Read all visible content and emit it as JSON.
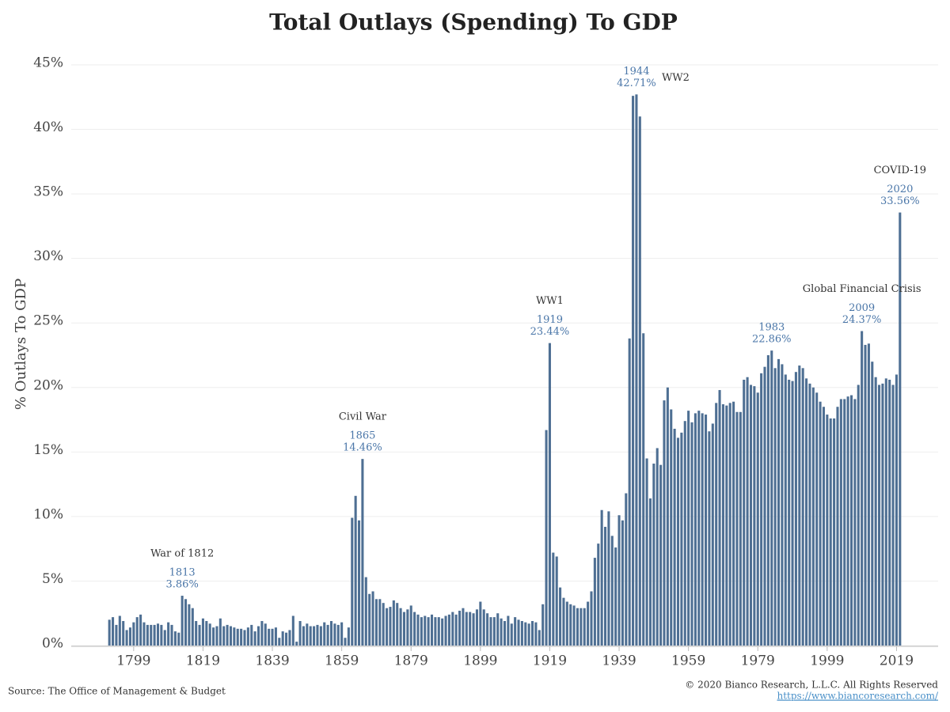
{
  "chart_data": {
    "type": "bar",
    "title": "Total Outlays (Spending) To GDP",
    "ylabel": "% Outlays To GDP",
    "source": "Source: The Office of Management & Budget",
    "copyright": "© 2020 Bianco Research, L.L.C. All Rights Reserved",
    "url": "https://www.biancoresearch.com/",
    "color": "#4e6f93",
    "grid": true,
    "xlim": [
      1781,
      2031
    ],
    "ylim": [
      0,
      45
    ],
    "xticks": [
      1799,
      1819,
      1839,
      1859,
      1879,
      1899,
      1919,
      1939,
      1959,
      1979,
      1999,
      2019
    ],
    "yticks": [
      {
        "value": 0,
        "label": "0%"
      },
      {
        "value": 5,
        "label": "5%"
      },
      {
        "value": 10,
        "label": "10%"
      },
      {
        "value": 15,
        "label": "15%"
      },
      {
        "value": 20,
        "label": "20%"
      },
      {
        "value": 25,
        "label": "25%"
      },
      {
        "value": 30,
        "label": "30%"
      },
      {
        "value": 35,
        "label": "35%"
      },
      {
        "value": 40,
        "label": "40%"
      },
      {
        "value": 45,
        "label": "45%"
      }
    ],
    "x": [
      1792,
      1793,
      1794,
      1795,
      1796,
      1797,
      1798,
      1799,
      1800,
      1801,
      1802,
      1803,
      1804,
      1805,
      1806,
      1807,
      1808,
      1809,
      1810,
      1811,
      1812,
      1813,
      1814,
      1815,
      1816,
      1817,
      1818,
      1819,
      1820,
      1821,
      1822,
      1823,
      1824,
      1825,
      1826,
      1827,
      1828,
      1829,
      1830,
      1831,
      1832,
      1833,
      1834,
      1835,
      1836,
      1837,
      1838,
      1839,
      1840,
      1841,
      1842,
      1843,
      1844,
      1845,
      1846,
      1847,
      1848,
      1849,
      1850,
      1851,
      1852,
      1853,
      1854,
      1855,
      1856,
      1857,
      1858,
      1859,
      1860,
      1861,
      1862,
      1863,
      1864,
      1865,
      1866,
      1867,
      1868,
      1869,
      1870,
      1871,
      1872,
      1873,
      1874,
      1875,
      1876,
      1877,
      1878,
      1879,
      1880,
      1881,
      1882,
      1883,
      1884,
      1885,
      1886,
      1887,
      1888,
      1889,
      1890,
      1891,
      1892,
      1893,
      1894,
      1895,
      1896,
      1897,
      1898,
      1899,
      1900,
      1901,
      1902,
      1903,
      1904,
      1905,
      1906,
      1907,
      1908,
      1909,
      1910,
      1911,
      1912,
      1913,
      1914,
      1915,
      1916,
      1917,
      1918,
      1919,
      1920,
      1921,
      1922,
      1923,
      1924,
      1925,
      1926,
      1927,
      1928,
      1929,
      1930,
      1931,
      1932,
      1933,
      1934,
      1935,
      1936,
      1937,
      1938,
      1939,
      1940,
      1941,
      1942,
      1943,
      1944,
      1945,
      1946,
      1947,
      1948,
      1949,
      1950,
      1951,
      1952,
      1953,
      1954,
      1955,
      1956,
      1957,
      1958,
      1959,
      1960,
      1961,
      1962,
      1963,
      1964,
      1965,
      1966,
      1967,
      1968,
      1969,
      1970,
      1971,
      1972,
      1973,
      1974,
      1975,
      1976,
      1977,
      1978,
      1979,
      1980,
      1981,
      1982,
      1983,
      1984,
      1985,
      1986,
      1987,
      1988,
      1989,
      1990,
      1991,
      1992,
      1993,
      1994,
      1995,
      1996,
      1997,
      1998,
      1999,
      2000,
      2001,
      2002,
      2003,
      2004,
      2005,
      2006,
      2007,
      2008,
      2009,
      2010,
      2011,
      2012,
      2013,
      2014,
      2015,
      2016,
      2017,
      2018,
      2019,
      2020
    ],
    "values": [
      2.0,
      2.2,
      1.6,
      2.3,
      1.9,
      1.2,
      1.4,
      1.8,
      2.2,
      2.4,
      1.8,
      1.6,
      1.6,
      1.6,
      1.7,
      1.6,
      1.2,
      1.8,
      1.6,
      1.1,
      1.0,
      3.86,
      3.6,
      3.2,
      2.9,
      1.9,
      1.6,
      2.1,
      1.9,
      1.7,
      1.4,
      1.5,
      2.1,
      1.5,
      1.6,
      1.5,
      1.4,
      1.3,
      1.3,
      1.2,
      1.4,
      1.6,
      1.1,
      1.5,
      1.9,
      1.7,
      1.3,
      1.3,
      1.4,
      0.6,
      1.1,
      1.0,
      1.2,
      2.3,
      0.3,
      1.9,
      1.5,
      1.7,
      1.5,
      1.5,
      1.6,
      1.5,
      1.8,
      1.6,
      1.9,
      1.7,
      1.6,
      1.8,
      0.6,
      1.4,
      9.9,
      11.6,
      9.7,
      14.46,
      5.3,
      4.0,
      4.2,
      3.6,
      3.6,
      3.3,
      2.9,
      3.0,
      3.5,
      3.3,
      2.9,
      2.6,
      2.8,
      3.1,
      2.6,
      2.4,
      2.2,
      2.3,
      2.2,
      2.4,
      2.2,
      2.2,
      2.1,
      2.3,
      2.4,
      2.6,
      2.4,
      2.7,
      2.9,
      2.6,
      2.6,
      2.5,
      2.8,
      3.4,
      2.8,
      2.5,
      2.2,
      2.2,
      2.5,
      2.1,
      1.9,
      2.3,
      1.7,
      2.2,
      2.0,
      1.9,
      1.8,
      1.7,
      1.9,
      1.8,
      1.2,
      3.2,
      16.7,
      23.44,
      7.2,
      6.9,
      4.5,
      3.7,
      3.4,
      3.2,
      3.1,
      2.9,
      2.9,
      2.9,
      3.4,
      4.2,
      6.8,
      7.9,
      10.5,
      9.2,
      10.4,
      8.5,
      7.6,
      10.1,
      9.7,
      11.8,
      23.8,
      42.6,
      42.71,
      41.0,
      24.2,
      14.5,
      11.4,
      14.1,
      15.3,
      14.0,
      19.0,
      20.0,
      18.3,
      16.8,
      16.1,
      16.5,
      17.4,
      18.2,
      17.3,
      18.0,
      18.2,
      18.0,
      17.9,
      16.6,
      17.2,
      18.8,
      19.8,
      18.7,
      18.6,
      18.8,
      18.9,
      18.1,
      18.1,
      20.6,
      20.8,
      20.2,
      20.1,
      19.6,
      21.1,
      21.6,
      22.5,
      22.86,
      21.5,
      22.2,
      21.8,
      21.0,
      20.6,
      20.5,
      21.2,
      21.7,
      21.5,
      20.7,
      20.3,
      20.0,
      19.6,
      18.9,
      18.5,
      17.9,
      17.6,
      17.6,
      18.5,
      19.1,
      19.1,
      19.3,
      19.4,
      19.1,
      20.2,
      24.37,
      23.3,
      23.4,
      22.0,
      20.8,
      20.2,
      20.3,
      20.7,
      20.6,
      20.2,
      21.0,
      33.56
    ],
    "value_labels": {
      "21": "3.86%",
      "73": "14.46%",
      "127": "23.44%",
      "152": "42.71%",
      "191": "22.86%",
      "217": "24.37%",
      "228": "33.56%"
    },
    "event_labels": {
      "21": "War of 1812",
      "73": "Civil War",
      "127": "WW1",
      "152": "WW2",
      "217": "Global Financial Crisis",
      "228": "COVID-19"
    }
  }
}
